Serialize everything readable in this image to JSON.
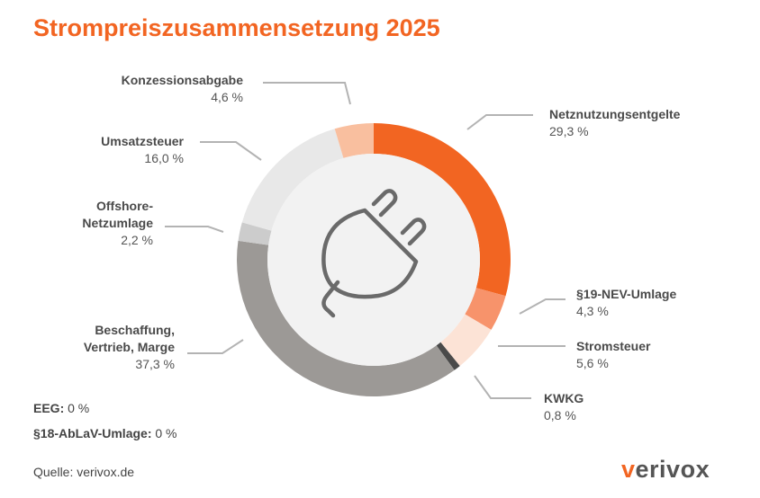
{
  "title": "Strompreiszusammensetzung 2025",
  "chart_data": {
    "type": "pie",
    "title": "Strompreiszusammensetzung 2025",
    "unit": "%",
    "slices": [
      {
        "label": "Netznutzungsentgelte",
        "value": 29.3,
        "value_text": "29,3 %",
        "color": "#f26522"
      },
      {
        "label": "§19-NEV-Umlage",
        "value": 4.3,
        "value_text": "4,3 %",
        "color": "#f7936b"
      },
      {
        "label": "Stromsteuer",
        "value": 5.6,
        "value_text": "5,6 %",
        "color": "#fce3d6"
      },
      {
        "label": "KWKG",
        "value": 0.8,
        "value_text": "0,8 %",
        "color": "#4a4a4a"
      },
      {
        "label": "Beschaffung,\nVertrieb, Marge",
        "value": 37.3,
        "value_text": "37,3 %",
        "color": "#9c9996"
      },
      {
        "label": "Offshore-\nNetzumlage",
        "value": 2.2,
        "value_text": "2,2 %",
        "color": "#cccccc"
      },
      {
        "label": "Umsatzsteuer",
        "value": 16.0,
        "value_text": "16,0 %",
        "color": "#e8e8e8"
      },
      {
        "label": "Konzessionsabgabe",
        "value": 4.6,
        "value_text": "4,6 %",
        "color": "#f9bf9f"
      }
    ]
  },
  "notes": [
    {
      "label": "EEG:",
      "value": "0 %"
    },
    {
      "label": "§18-AbLaV-Umlage:",
      "value": "0 %"
    }
  ],
  "source": "Quelle: verivox.de",
  "logo": {
    "mark": "v",
    "rest": "erivox"
  },
  "center_icon": "plug-icon"
}
